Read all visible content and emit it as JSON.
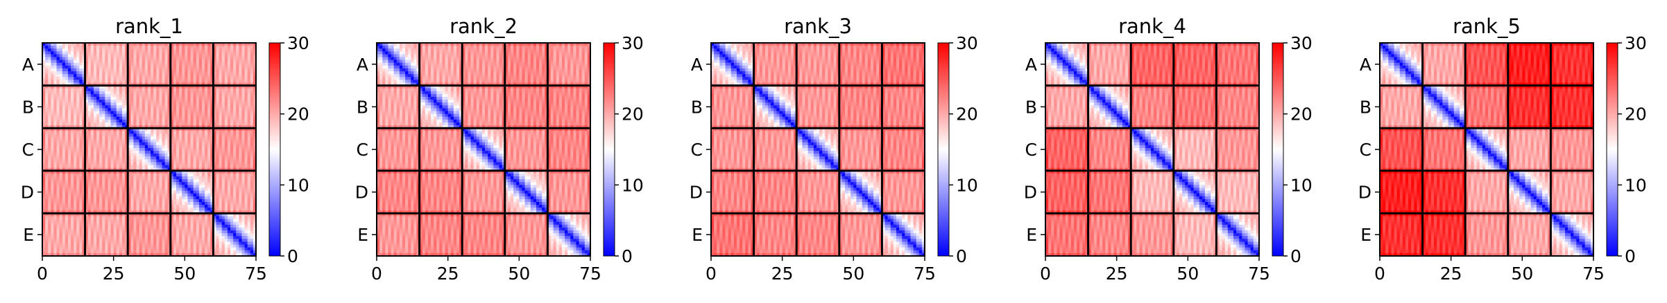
{
  "chart_data": [
    {
      "type": "heatmap",
      "title": "rank_1",
      "x_ticks": [
        "0",
        "25",
        "50",
        "75"
      ],
      "x_tick_values": [
        0,
        25,
        50,
        75
      ],
      "xlim": [
        0,
        75
      ],
      "y_tick_labels": [
        "A",
        "B",
        "C",
        "D",
        "E"
      ],
      "chain_length": 15,
      "colorbar": {
        "min": 0,
        "max": 30,
        "ticks": [
          "0",
          "10",
          "20",
          "30"
        ],
        "colormap": "bwr"
      },
      "diag_profile": [
        0,
        4,
        7,
        10,
        12,
        14,
        16,
        17,
        18,
        18,
        19,
        19,
        20,
        20,
        21
      ],
      "block_means": [
        [
          8,
          19,
          20,
          21,
          20
        ],
        [
          19,
          8,
          20,
          21,
          20
        ],
        [
          20,
          20,
          8,
          20,
          21
        ],
        [
          21,
          21,
          20,
          8,
          20
        ],
        [
          20,
          20,
          21,
          20,
          8
        ]
      ]
    },
    {
      "type": "heatmap",
      "title": "rank_2",
      "x_ticks": [
        "0",
        "25",
        "50",
        "75"
      ],
      "x_tick_values": [
        0,
        25,
        50,
        75
      ],
      "xlim": [
        0,
        75
      ],
      "y_tick_labels": [
        "A",
        "B",
        "C",
        "D",
        "E"
      ],
      "chain_length": 15,
      "colorbar": {
        "min": 0,
        "max": 30,
        "ticks": [
          "0",
          "10",
          "20",
          "30"
        ],
        "colormap": "bwr"
      },
      "diag_profile": [
        0,
        4,
        7,
        10,
        12,
        14,
        16,
        17,
        18,
        18,
        19,
        19,
        20,
        20,
        21
      ],
      "block_means": [
        [
          8,
          20,
          21,
          22,
          21
        ],
        [
          20,
          8,
          21,
          22,
          22
        ],
        [
          21,
          21,
          8,
          21,
          22
        ],
        [
          22,
          22,
          21,
          8,
          21
        ],
        [
          21,
          22,
          22,
          21,
          8
        ]
      ]
    },
    {
      "type": "heatmap",
      "title": "rank_3",
      "x_ticks": [
        "0",
        "25",
        "50",
        "75"
      ],
      "x_tick_values": [
        0,
        25,
        50,
        75
      ],
      "xlim": [
        0,
        75
      ],
      "y_tick_labels": [
        "A",
        "B",
        "C",
        "D",
        "E"
      ],
      "chain_length": 15,
      "colorbar": {
        "min": 0,
        "max": 30,
        "ticks": [
          "0",
          "10",
          "20",
          "30"
        ],
        "colormap": "bwr"
      },
      "diag_profile": [
        0,
        4,
        7,
        10,
        12,
        14,
        16,
        17,
        18,
        18,
        19,
        19,
        20,
        20,
        21
      ],
      "block_means": [
        [
          8,
          21,
          21,
          22,
          23
        ],
        [
          21,
          8,
          21,
          22,
          22
        ],
        [
          21,
          21,
          8,
          21,
          22
        ],
        [
          22,
          22,
          21,
          8,
          21
        ],
        [
          23,
          22,
          22,
          21,
          8
        ]
      ]
    },
    {
      "type": "heatmap",
      "title": "rank_4",
      "x_ticks": [
        "0",
        "25",
        "50",
        "75"
      ],
      "x_tick_values": [
        0,
        25,
        50,
        75
      ],
      "xlim": [
        0,
        75
      ],
      "y_tick_labels": [
        "A",
        "B",
        "C",
        "D",
        "E"
      ],
      "chain_length": 15,
      "colorbar": {
        "min": 0,
        "max": 30,
        "ticks": [
          "0",
          "10",
          "20",
          "30"
        ],
        "colormap": "bwr"
      },
      "diag_profile": [
        0,
        4,
        7,
        10,
        12,
        14,
        16,
        17,
        18,
        18,
        19,
        19,
        20,
        20,
        21
      ],
      "block_means": [
        [
          8,
          20,
          24,
          24,
          23
        ],
        [
          20,
          8,
          22,
          23,
          22
        ],
        [
          24,
          22,
          8,
          19,
          21
        ],
        [
          24,
          23,
          19,
          8,
          19
        ],
        [
          23,
          22,
          21,
          19,
          8
        ]
      ]
    },
    {
      "type": "heatmap",
      "title": "rank_5",
      "x_ticks": [
        "0",
        "25",
        "50",
        "75"
      ],
      "x_tick_values": [
        0,
        25,
        50,
        75
      ],
      "xlim": [
        0,
        75
      ],
      "y_tick_labels": [
        "A",
        "B",
        "C",
        "D",
        "E"
      ],
      "chain_length": 15,
      "colorbar": {
        "min": 0,
        "max": 30,
        "ticks": [
          "0",
          "10",
          "20",
          "30"
        ],
        "colormap": "bwr"
      },
      "diag_profile": [
        0,
        4,
        7,
        10,
        12,
        14,
        16,
        17,
        18,
        18,
        19,
        19,
        20,
        20,
        21
      ],
      "block_means": [
        [
          8,
          20,
          25,
          28,
          27
        ],
        [
          20,
          8,
          23,
          27,
          27
        ],
        [
          25,
          23,
          8,
          20,
          21
        ],
        [
          28,
          27,
          20,
          8,
          20
        ],
        [
          27,
          27,
          21,
          20,
          8
        ]
      ]
    }
  ]
}
